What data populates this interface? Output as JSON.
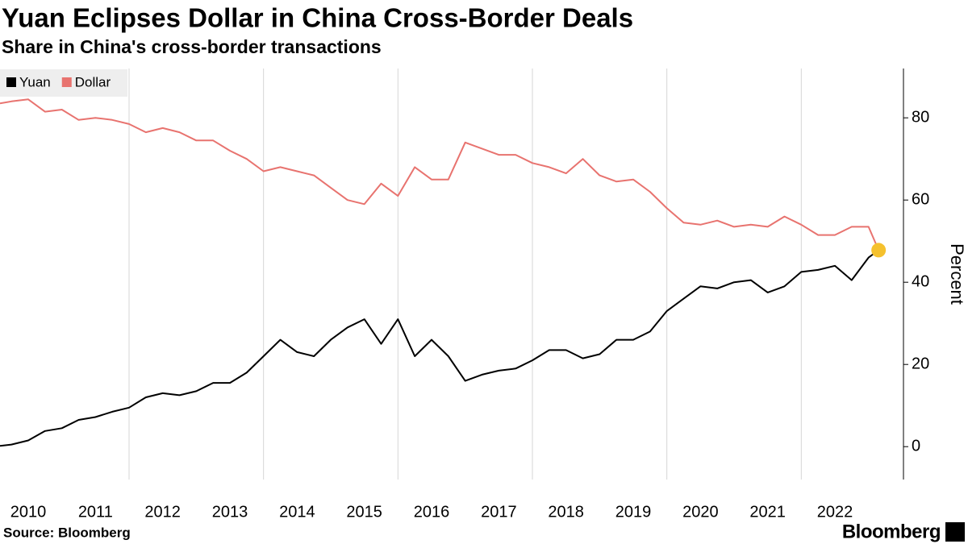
{
  "chart_data": {
    "type": "line",
    "title": "Yuan Eclipses Dollar in China Cross-Border Deals",
    "subtitle": "Share in China's cross-border transactions",
    "y_label": "Percent",
    "source": "Source: Bloomberg",
    "brand": "Bloomberg",
    "x": [
      2010.08,
      2010.25,
      2010.5,
      2010.75,
      2011.0,
      2011.25,
      2011.5,
      2011.75,
      2012.0,
      2012.25,
      2012.5,
      2012.75,
      2013.0,
      2013.25,
      2013.5,
      2013.75,
      2014.0,
      2014.25,
      2014.5,
      2014.75,
      2015.0,
      2015.25,
      2015.5,
      2015.75,
      2016.0,
      2016.25,
      2016.5,
      2016.75,
      2017.0,
      2017.25,
      2017.5,
      2017.75,
      2018.0,
      2018.25,
      2018.5,
      2018.75,
      2019.0,
      2019.25,
      2019.5,
      2019.75,
      2020.0,
      2020.25,
      2020.5,
      2020.75,
      2021.0,
      2021.25,
      2021.5,
      2021.75,
      2022.0,
      2022.25,
      2022.5,
      2022.75,
      2023.0,
      2023.15
    ],
    "series": [
      {
        "name": "Yuan",
        "color": "#000000",
        "values": [
          0.2,
          0.5,
          1.5,
          3.8,
          4.5,
          6.5,
          7.2,
          8.5,
          9.5,
          12,
          13,
          12.5,
          13.5,
          15.5,
          15.5,
          18,
          22,
          26,
          23,
          22,
          26,
          29,
          31,
          25,
          31,
          22,
          26,
          22,
          16,
          17.5,
          18.5,
          19,
          21,
          23.5,
          23.5,
          21.5,
          22.5,
          26,
          26,
          28,
          33,
          36,
          39,
          38.5,
          40,
          40.5,
          37.5,
          39,
          42.5,
          43,
          44,
          40.5,
          46,
          47.8
        ]
      },
      {
        "name": "Dollar",
        "color": "#e8736f",
        "values": [
          83.5,
          84,
          84.5,
          81.5,
          82,
          79.5,
          80,
          79.5,
          78.5,
          76.5,
          77.5,
          76.5,
          74.5,
          74.5,
          72,
          70,
          67,
          68,
          67,
          66,
          63,
          60,
          59,
          64,
          61,
          68,
          65,
          65,
          74,
          72.5,
          71,
          71,
          69,
          68,
          66.5,
          70,
          66,
          64.5,
          65,
          62,
          58,
          54.5,
          54,
          55,
          53.5,
          54,
          53.5,
          56,
          54,
          51.5,
          51.5,
          53.5,
          53.5,
          47.8
        ]
      }
    ],
    "highlight_color": "#f5c12e",
    "xlim": [
      2010.08,
      2023.52
    ],
    "xticks": [
      2010,
      2011,
      2012,
      2013,
      2014,
      2015,
      2016,
      2017,
      2018,
      2019,
      2020,
      2021,
      2022
    ],
    "ylim": [
      -8,
      92
    ],
    "yticks": [
      0,
      20,
      40,
      60,
      80
    ],
    "grid": true
  }
}
